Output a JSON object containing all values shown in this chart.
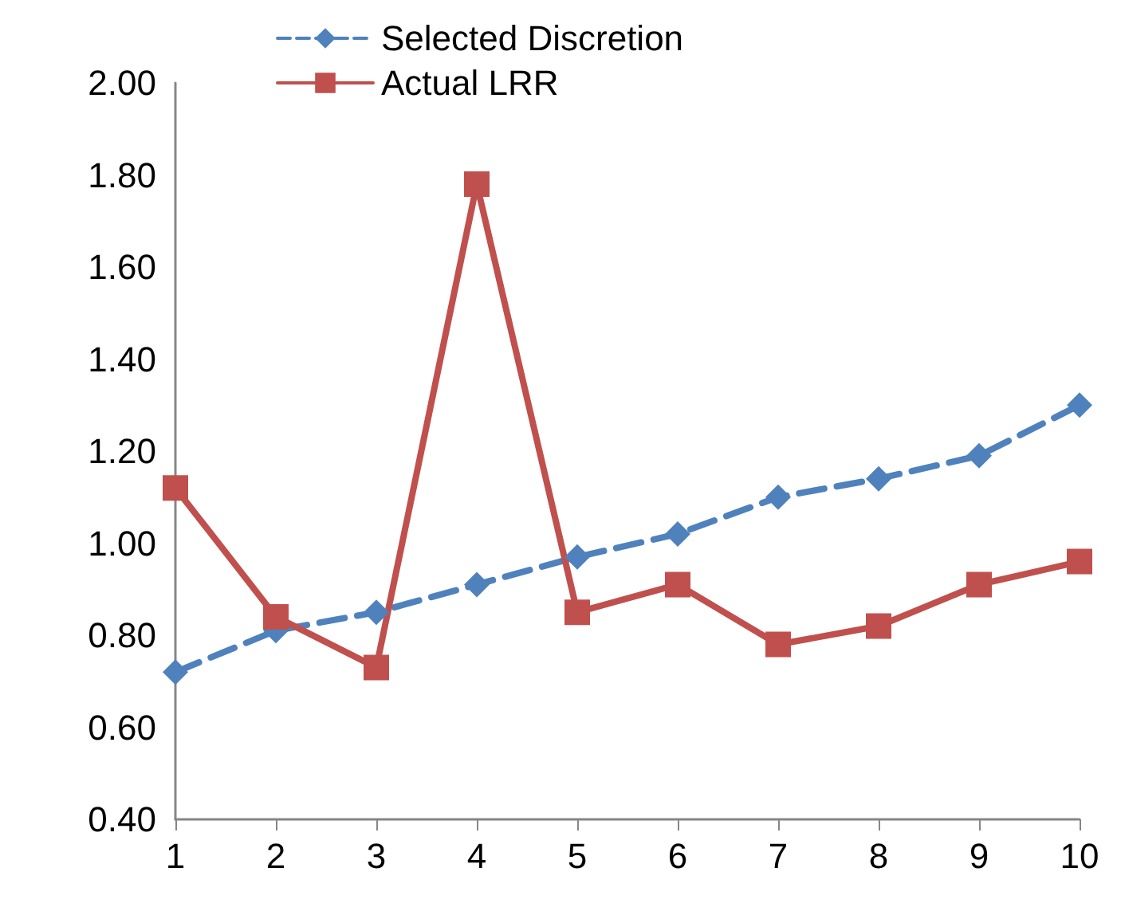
{
  "chart_data": {
    "type": "line",
    "x": [
      1,
      2,
      3,
      4,
      5,
      6,
      7,
      8,
      9,
      10
    ],
    "xlim": [
      1,
      10
    ],
    "xticks": [
      1,
      2,
      3,
      4,
      5,
      6,
      7,
      8,
      9,
      10
    ],
    "ylim": [
      0.4,
      2
    ],
    "yticks": [
      {
        "value": 0.4,
        "label": "0.40"
      },
      {
        "value": 0.6,
        "label": "0.60"
      },
      {
        "value": 0.8,
        "label": "0.80"
      },
      {
        "value": 1,
        "label": "1.00"
      },
      {
        "value": 1.2,
        "label": "1.20"
      },
      {
        "value": 1.4,
        "label": "1.40"
      },
      {
        "value": 1.6,
        "label": "1.60"
      },
      {
        "value": 1.8,
        "label": "1.80"
      },
      {
        "value": 2,
        "label": "2.00"
      }
    ],
    "grid": false,
    "legend": "top",
    "series": [
      {
        "name": "Selected Discretion",
        "color": "#4f81bd",
        "marker": "diamond",
        "line_style": "dashed",
        "values": [
          0.72,
          0.81,
          0.85,
          0.91,
          0.97,
          1.02,
          1.1,
          1.14,
          1.19,
          1.3
        ]
      },
      {
        "name": "Actual LRR",
        "color": "#c0504d",
        "marker": "square",
        "line_style": "solid",
        "values": [
          1.12,
          0.84,
          0.73,
          1.78,
          0.85,
          0.91,
          0.78,
          0.82,
          0.91,
          0.96
        ]
      }
    ]
  }
}
